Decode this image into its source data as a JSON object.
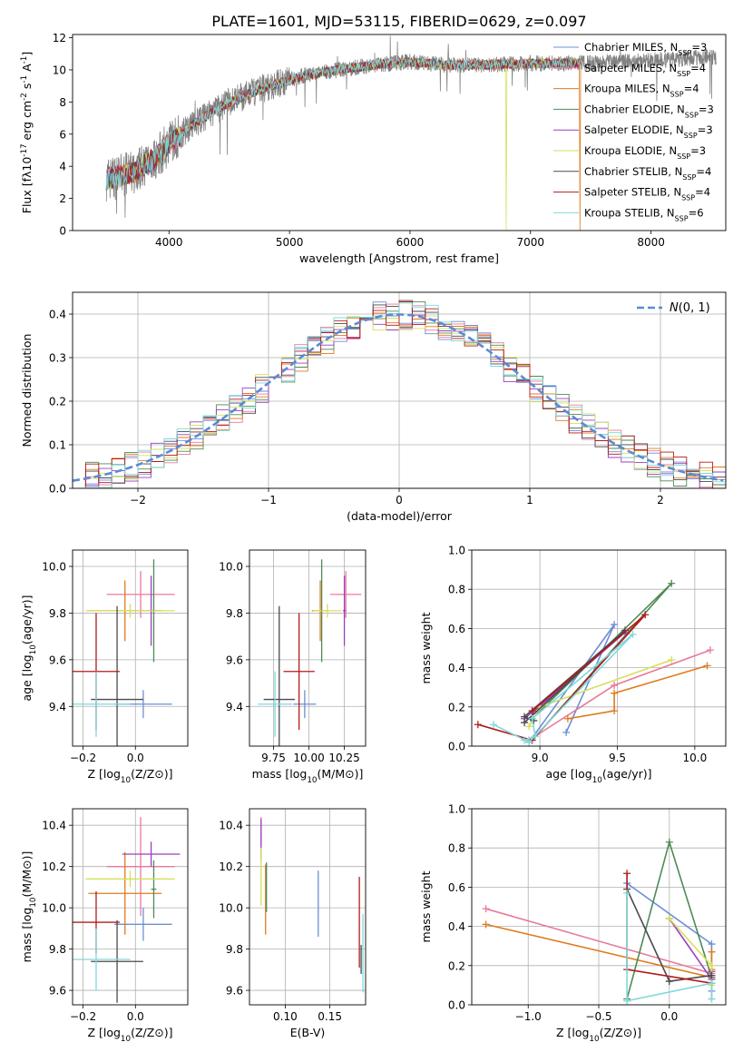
{
  "figure_title": "PLATE=1601, MJD=53115, FIBERID=0629, z=0.097",
  "colors": {
    "Chabrier MILES": "#6c8fd6",
    "Salpeter MILES": "#e87a9a",
    "Kroupa MILES": "#e07b1f",
    "Chabrier ELODIE": "#4f8a55",
    "Salpeter ELODIE": "#9b3fc0",
    "Kroupa ELODIE": "#d6e05a",
    "Chabrier STELIB": "#4a4a4a",
    "Salpeter STELIB": "#b41a1a",
    "Kroupa STELIB": "#7fd8dc"
  },
  "chart_data": [
    {
      "id": "spectrum",
      "type": "line",
      "xlabel": "wavelength [Angstrom, rest frame]",
      "ylabel": "Flux [f$_\\lambda$10$^{-17}$ erg cm$^{-2}$ s$^{-1}$ A$^{-1}$]",
      "xlim": [
        3200,
        8620
      ],
      "ylim": [
        0,
        12.2
      ],
      "xticks": [
        4000,
        5000,
        6000,
        7000,
        8000
      ],
      "yticks": [
        0,
        2,
        4,
        6,
        8,
        10,
        12
      ],
      "grid": false,
      "legend_position": "top-right",
      "data_color": "#808080",
      "data_x_range": [
        3480,
        8540
      ],
      "continuum": {
        "x": [
          3480,
          3700,
          3900,
          4000,
          4200,
          4500,
          4800,
          5100,
          5400,
          5700,
          6000,
          6300,
          6600,
          7000,
          7400
        ],
        "y": [
          3.2,
          3.6,
          4.6,
          5.4,
          6.6,
          8.0,
          8.9,
          9.6,
          10.0,
          10.3,
          10.5,
          10.3,
          10.3,
          10.4,
          10.4
        ]
      },
      "data_continuation": {
        "x": [
          7400,
          8000,
          8540
        ],
        "y": [
          10.4,
          10.6,
          10.8
        ]
      },
      "series": [
        {
          "name": "Chabrier MILES, N$_{SSP}$=3",
          "color": "#6c8fd6"
        },
        {
          "name": "Salpeter MILES, N$_{SSP}$=4",
          "color": "#e87a9a"
        },
        {
          "name": "Kroupa MILES, N$_{SSP}$=4",
          "color": "#e07b1f"
        },
        {
          "name": "Chabrier ELODIE, N$_{SSP}$=3",
          "color": "#4f8a55"
        },
        {
          "name": "Salpeter ELODIE, N$_{SSP}$=3",
          "color": "#9b3fc0"
        },
        {
          "name": "Kroupa ELODIE, N$_{SSP}$=3",
          "color": "#d6e05a"
        },
        {
          "name": "Chabrier STELIB, N$_{SSP}$=4",
          "color": "#4a4a4a"
        },
        {
          "name": "Salpeter STELIB, N$_{SSP}$=4",
          "color": "#b41a1a"
        },
        {
          "name": "Kroupa STELIB, N$_{SSP}$=6",
          "color": "#7fd8dc"
        }
      ]
    },
    {
      "id": "residuals",
      "type": "line",
      "xlabel": "(data-model)/error",
      "ylabel": "Normed distribution",
      "xlim": [
        -2.5,
        2.5
      ],
      "ylim": [
        0,
        0.45
      ],
      "xticks": [
        -2,
        -1,
        0,
        1,
        2
      ],
      "yticks": [
        0.0,
        0.1,
        0.2,
        0.3,
        0.4
      ],
      "grid": true,
      "legend_position": "top-right",
      "legend": "$\\mathcal{N}(0,1)$",
      "curve_color": "#5b8ad6",
      "bin_width": 0.1
    },
    {
      "id": "z_age",
      "type": "scatter",
      "xlabel": "Z [log$_{10}$(Z/Z$_\\odot$)]",
      "ylabel": "age  [log$_{10}$(age/yr)]",
      "xlim": [
        -0.24,
        0.2
      ],
      "ylim": [
        9.23,
        10.07
      ],
      "xticks": [
        -0.2,
        0.0
      ],
      "yticks": [
        9.4,
        9.6,
        9.8,
        10.0
      ],
      "grid": true,
      "points": [
        {
          "s": "Chabrier MILES",
          "x": 0.03,
          "xe": 0.11,
          "y": 9.41,
          "ye": 0.06
        },
        {
          "s": "Salpeter MILES",
          "x": 0.02,
          "xe": 0.13,
          "y": 9.88,
          "ye": 0.1
        },
        {
          "s": "Kroupa MILES",
          "x": -0.04,
          "xe": 0.14,
          "y": 9.81,
          "ye": 0.13
        },
        {
          "s": "Chabrier ELODIE",
          "x": 0.07,
          "xe": 0.01,
          "y": 9.81,
          "ye": 0.22
        },
        {
          "s": "Salpeter ELODIE",
          "x": 0.06,
          "xe": 0.01,
          "y": 9.81,
          "ye": 0.15
        },
        {
          "s": "Kroupa ELODIE",
          "x": -0.02,
          "xe": 0.17,
          "y": 9.81,
          "ye": 0.03
        },
        {
          "s": "Chabrier STELIB",
          "x": -0.07,
          "xe": 0.1,
          "y": 9.43,
          "ye": 0.4
        },
        {
          "s": "Salpeter STELIB",
          "x": -0.15,
          "xe": 0.09,
          "y": 9.55,
          "ye": 0.25
        },
        {
          "s": "Kroupa STELIB",
          "x": -0.15,
          "xe": 0.13,
          "y": 9.41,
          "ye": 0.14
        }
      ]
    },
    {
      "id": "mass_age",
      "type": "scatter",
      "xlabel": "mass [log$_{10}$(M/M$_\\odot$)]",
      "ylabel": "",
      "xlim": [
        9.58,
        10.4
      ],
      "ylim": [
        9.23,
        10.07
      ],
      "xticks": [
        9.75,
        10.0,
        10.25
      ],
      "yticks": [
        9.4,
        9.6,
        9.8,
        10.0
      ],
      "grid": true,
      "points": [
        {
          "s": "Chabrier MILES",
          "x": 9.97,
          "xe": 0.08,
          "y": 9.41,
          "ye": 0.06
        },
        {
          "s": "Salpeter MILES",
          "x": 10.26,
          "xe": 0.11,
          "y": 9.88,
          "ye": 0.1
        },
        {
          "s": "Kroupa MILES",
          "x": 10.08,
          "xe": 0.06,
          "y": 9.81,
          "ye": 0.13
        },
        {
          "s": "Chabrier ELODIE",
          "x": 10.09,
          "xe": 0.01,
          "y": 9.81,
          "ye": 0.22
        },
        {
          "s": "Salpeter ELODIE",
          "x": 10.25,
          "xe": 0.01,
          "y": 9.81,
          "ye": 0.15
        },
        {
          "s": "Kroupa ELODIE",
          "x": 10.13,
          "xe": 0.1,
          "y": 9.81,
          "ye": 0.03
        },
        {
          "s": "Chabrier STELIB",
          "x": 9.79,
          "xe": 0.11,
          "y": 9.43,
          "ye": 0.4
        },
        {
          "s": "Salpeter STELIB",
          "x": 9.93,
          "xe": 0.11,
          "y": 9.55,
          "ye": 0.25
        },
        {
          "s": "Kroupa STELIB",
          "x": 9.76,
          "xe": 0.12,
          "y": 9.41,
          "ye": 0.14
        }
      ]
    },
    {
      "id": "age_weight",
      "type": "line",
      "xlabel": "age  [log$_{10}$(age/yr)]",
      "ylabel": "mass weight",
      "xlim": [
        8.56,
        10.2
      ],
      "ylim": [
        0,
        1.0
      ],
      "xticks": [
        9.0,
        9.5,
        10.0
      ],
      "yticks": [
        0.0,
        0.2,
        0.4,
        0.6,
        0.8,
        1.0
      ],
      "grid": true,
      "series": [
        {
          "s": "Chabrier MILES",
          "x": [
            9.17,
            9.48,
            8.93
          ],
          "y": [
            0.07,
            0.62,
            0.02
          ]
        },
        {
          "s": "Salpeter MILES",
          "x": [
            8.93,
            9.48,
            10.1
          ],
          "y": [
            0.03,
            0.31,
            0.49
          ]
        },
        {
          "s": "Kroupa MILES",
          "x": [
            9.18,
            9.48,
            9.48,
            10.08
          ],
          "y": [
            0.14,
            0.18,
            0.27,
            0.41
          ]
        },
        {
          "s": "Chabrier ELODIE",
          "x": [
            8.95,
            9.85,
            8.95
          ],
          "y": [
            0.03,
            0.83,
            0.14
          ]
        },
        {
          "s": "Salpeter ELODIE",
          "x": [
            8.9,
            9.55,
            8.95
          ],
          "y": [
            0.14,
            0.58,
            0.17
          ]
        },
        {
          "s": "Kroupa ELODIE",
          "x": [
            9.85,
            9.0,
            8.93
          ],
          "y": [
            0.44,
            0.2,
            0.1
          ]
        },
        {
          "s": "Chabrier STELIB",
          "x": [
            8.9,
            9.55,
            8.9,
            8.96
          ],
          "y": [
            0.12,
            0.59,
            0.15,
            0.13
          ]
        },
        {
          "s": "Salpeter STELIB",
          "x": [
            8.6,
            8.95,
            9.68,
            8.95
          ],
          "y": [
            0.11,
            0.03,
            0.67,
            0.18
          ]
        },
        {
          "s": "Kroupa STELIB",
          "x": [
            8.7,
            8.93,
            9.6,
            8.95,
            8.97,
            8.9
          ],
          "y": [
            0.11,
            0.02,
            0.57,
            0.14,
            0.05,
            0.03
          ]
        }
      ]
    },
    {
      "id": "z_mass",
      "type": "scatter",
      "xlabel": "Z [log$_{10}$(Z/Z$_\\odot$)]",
      "ylabel": "mass [log$_{10}$(M/M$_\\odot$)]",
      "xlim": [
        -0.24,
        0.2
      ],
      "ylim": [
        9.53,
        10.48
      ],
      "xticks": [
        -0.2,
        0.0
      ],
      "yticks": [
        9.6,
        9.8,
        10.0,
        10.2,
        10.4
      ],
      "grid": true,
      "points": [
        {
          "s": "Chabrier MILES",
          "x": 0.03,
          "xe": 0.11,
          "y": 9.92,
          "ye": 0.08
        },
        {
          "s": "Salpeter MILES",
          "x": 0.02,
          "xe": 0.13,
          "y": 10.2,
          "ye": 0.24
        },
        {
          "s": "Kroupa MILES",
          "x": -0.04,
          "xe": 0.14,
          "y": 10.07,
          "ye": 0.2
        },
        {
          "s": "Chabrier ELODIE",
          "x": 0.07,
          "xe": 0.01,
          "y": 10.09,
          "ye": 0.14
        },
        {
          "s": "Salpeter ELODIE",
          "x": 0.06,
          "xe": 0.11,
          "y": 10.26,
          "ye": 0.06
        },
        {
          "s": "Kroupa ELODIE",
          "x": -0.02,
          "xe": 0.17,
          "y": 10.14,
          "ye": 0.04
        },
        {
          "s": "Chabrier STELIB",
          "x": -0.07,
          "xe": 0.1,
          "y": 9.74,
          "ye": 0.2
        },
        {
          "s": "Salpeter STELIB",
          "x": -0.15,
          "xe": 0.09,
          "y": 9.93,
          "ye": 0.15
        },
        {
          "s": "Kroupa STELIB",
          "x": -0.15,
          "xe": 0.13,
          "y": 9.75,
          "ye": 0.15
        }
      ]
    },
    {
      "id": "ebv_mass",
      "type": "scatter",
      "xlabel": "E(B-V)",
      "ylabel": "",
      "xlim": [
        0.06,
        0.19
      ],
      "ylim": [
        9.53,
        10.48
      ],
      "xticks": [
        0.1,
        0.15
      ],
      "yticks": [
        9.6,
        9.8,
        10.0,
        10.2,
        10.4
      ],
      "grid": true,
      "points": [
        {
          "s": "Chabrier MILES",
          "x": 0.137,
          "y": 10.02,
          "ye": 0.16
        },
        {
          "s": "Salpeter MILES",
          "x": 0.073,
          "y": 10.37,
          "ye": 0.07
        },
        {
          "s": "Kroupa MILES",
          "x": 0.078,
          "y": 10.04,
          "ye": 0.17
        },
        {
          "s": "Chabrier ELODIE",
          "x": 0.079,
          "y": 10.1,
          "ye": 0.12
        },
        {
          "s": "Salpeter ELODIE",
          "x": 0.073,
          "y": 10.33,
          "ye": 0.1
        },
        {
          "s": "Kroupa ELODIE",
          "x": 0.073,
          "y": 10.15,
          "ye": 0.14
        },
        {
          "s": "Chabrier STELIB",
          "x": 0.185,
          "y": 9.75,
          "ye": 0.07
        },
        {
          "s": "Salpeter STELIB",
          "x": 0.183,
          "y": 9.93,
          "ye": 0.22
        },
        {
          "s": "Kroupa STELIB",
          "x": 0.187,
          "y": 9.78,
          "ye": 0.19
        }
      ]
    },
    {
      "id": "z_weight",
      "type": "line",
      "xlabel": "Z [log$_{10}$(Z/Z$_\\odot$)]",
      "ylabel": "mass weight",
      "xlim": [
        -1.4,
        0.4
      ],
      "ylim": [
        0,
        1.0
      ],
      "xticks": [
        -1.0,
        -0.5,
        0.0
      ],
      "yticks": [
        0.0,
        0.2,
        0.4,
        0.6,
        0.8,
        1.0
      ],
      "grid": true,
      "series": [
        {
          "s": "Chabrier MILES",
          "x": [
            -0.3,
            0.3,
            0.3
          ],
          "y": [
            0.62,
            0.31,
            0.07
          ]
        },
        {
          "s": "Salpeter MILES",
          "x": [
            -1.3,
            0.3,
            0.3
          ],
          "y": [
            0.49,
            0.16,
            0.03
          ]
        },
        {
          "s": "Kroupa MILES",
          "x": [
            -1.3,
            0.3,
            0.3,
            0.3
          ],
          "y": [
            0.41,
            0.14,
            0.18,
            0.27
          ]
        },
        {
          "s": "Chabrier ELODIE",
          "x": [
            -0.3,
            0.0,
            0.3
          ],
          "y": [
            0.03,
            0.83,
            0.14
          ]
        },
        {
          "s": "Salpeter ELODIE",
          "x": [
            0.0,
            0.3,
            0.3
          ],
          "y": [
            0.44,
            0.13,
            0.17
          ]
        },
        {
          "s": "Kroupa ELODIE",
          "x": [
            0.0,
            0.3,
            0.3
          ],
          "y": [
            0.44,
            0.2,
            0.1
          ]
        },
        {
          "s": "Chabrier STELIB",
          "x": [
            -0.3,
            0.0,
            0.3
          ],
          "y": [
            0.59,
            0.12,
            0.15
          ]
        },
        {
          "s": "Salpeter STELIB",
          "x": [
            -0.3,
            -0.3,
            0.3
          ],
          "y": [
            0.67,
            0.18,
            0.11
          ]
        },
        {
          "s": "Kroupa STELIB",
          "x": [
            -0.3,
            -0.3,
            0.3,
            0.3
          ],
          "y": [
            0.57,
            0.02,
            0.11,
            0.03
          ]
        }
      ]
    }
  ]
}
